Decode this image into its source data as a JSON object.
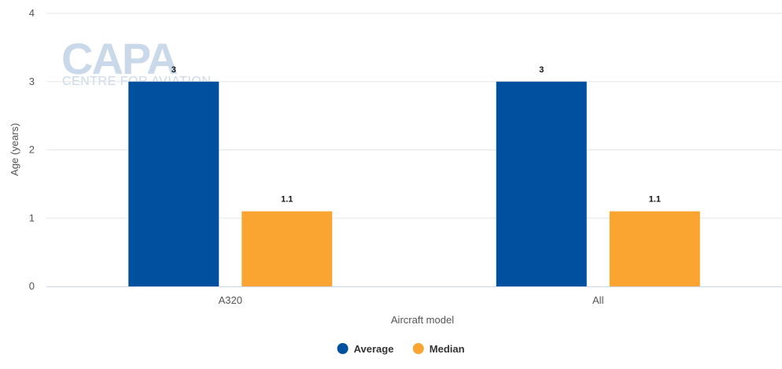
{
  "watermark": {
    "main": "CAPA",
    "sub": "CENTRE FOR AVIATION"
  },
  "chart_data": {
    "type": "bar",
    "categories": [
      "A320",
      "All"
    ],
    "series": [
      {
        "name": "Average",
        "values": [
          3,
          3
        ],
        "color": "#0050a0"
      },
      {
        "name": "Median",
        "values": [
          1.1,
          1.1
        ],
        "color": "#faa431"
      }
    ],
    "xlabel": "Aircraft model",
    "ylabel": "Age (years)",
    "ylim": [
      0,
      4
    ],
    "yticks": [
      0,
      1,
      2,
      3,
      4
    ],
    "grid": true,
    "legend_position": "bottom-center",
    "data_labels": true
  }
}
